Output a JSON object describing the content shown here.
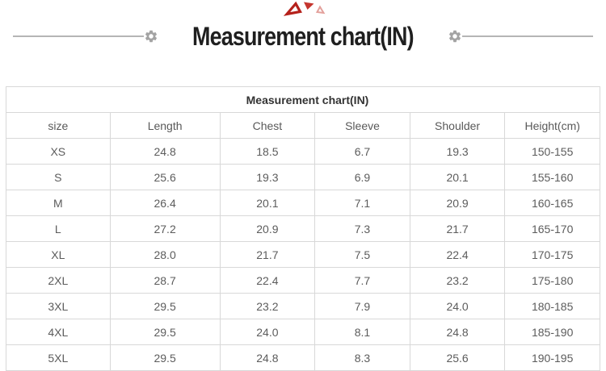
{
  "header": {
    "title": "Measurement chart(IN)",
    "decorations": {
      "triangle_dark": "#b5211b",
      "triangle_mid": "#c5352e",
      "triangle_light": "#e3a09b",
      "line_color": "#b5b5b5",
      "gear_color": "#a3a3a3"
    }
  },
  "chart_data": {
    "type": "table",
    "title": "Measurement chart(IN)",
    "columns": [
      "size",
      "Length",
      "Chest",
      "Sleeve",
      "Shoulder",
      "Height(cm)"
    ],
    "rows": [
      [
        "XS",
        "24.8",
        "18.5",
        "6.7",
        "19.3",
        "150-155"
      ],
      [
        "S",
        "25.6",
        "19.3",
        "6.9",
        "20.1",
        "155-160"
      ],
      [
        "M",
        "26.4",
        "20.1",
        "7.1",
        "20.9",
        "160-165"
      ],
      [
        "L",
        "27.2",
        "20.9",
        "7.3",
        "21.7",
        "165-170"
      ],
      [
        "XL",
        "28.0",
        "21.7",
        "7.5",
        "22.4",
        "170-175"
      ],
      [
        "2XL",
        "28.7",
        "22.4",
        "7.7",
        "23.2",
        "175-180"
      ],
      [
        "3XL",
        "29.5",
        "23.2",
        "7.9",
        "24.0",
        "180-185"
      ],
      [
        "4XL",
        "29.5",
        "24.0",
        "8.1",
        "24.8",
        "185-190"
      ],
      [
        "5XL",
        "29.5",
        "24.8",
        "8.3",
        "25.6",
        "190-195"
      ]
    ],
    "column_widths_pct": [
      17.5,
      18.5,
      16,
      16,
      16,
      16
    ],
    "units_note": "IN"
  }
}
